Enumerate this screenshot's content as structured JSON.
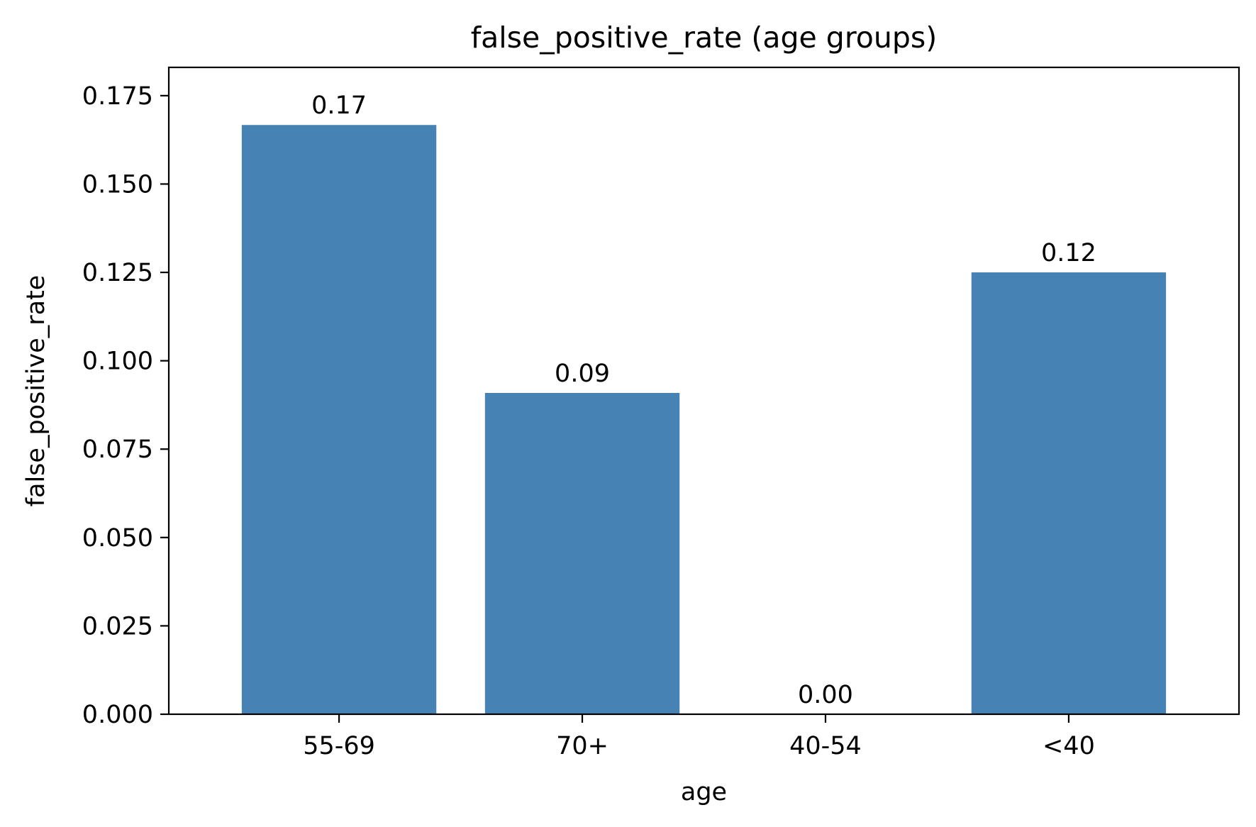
{
  "chart_data": {
    "type": "bar",
    "title": "false_positive_rate (age groups)",
    "xlabel": "age",
    "ylabel": "false_positive_rate",
    "categories": [
      "55-69",
      "70+",
      "40-54",
      "<40"
    ],
    "values": [
      0.1667,
      0.0909,
      0.0,
      0.125
    ],
    "value_labels": [
      "0.17",
      "0.09",
      "0.00",
      "0.12"
    ],
    "ylim": [
      0,
      0.183
    ],
    "yticks": [
      0,
      0.025,
      0.05,
      0.075,
      0.1,
      0.125,
      0.15,
      0.175
    ],
    "ytick_labels": [
      "0.000",
      "0.025",
      "0.050",
      "0.075",
      "0.100",
      "0.125",
      "0.150",
      "0.175"
    ],
    "grid": false,
    "bar_color": "#4682b4"
  }
}
